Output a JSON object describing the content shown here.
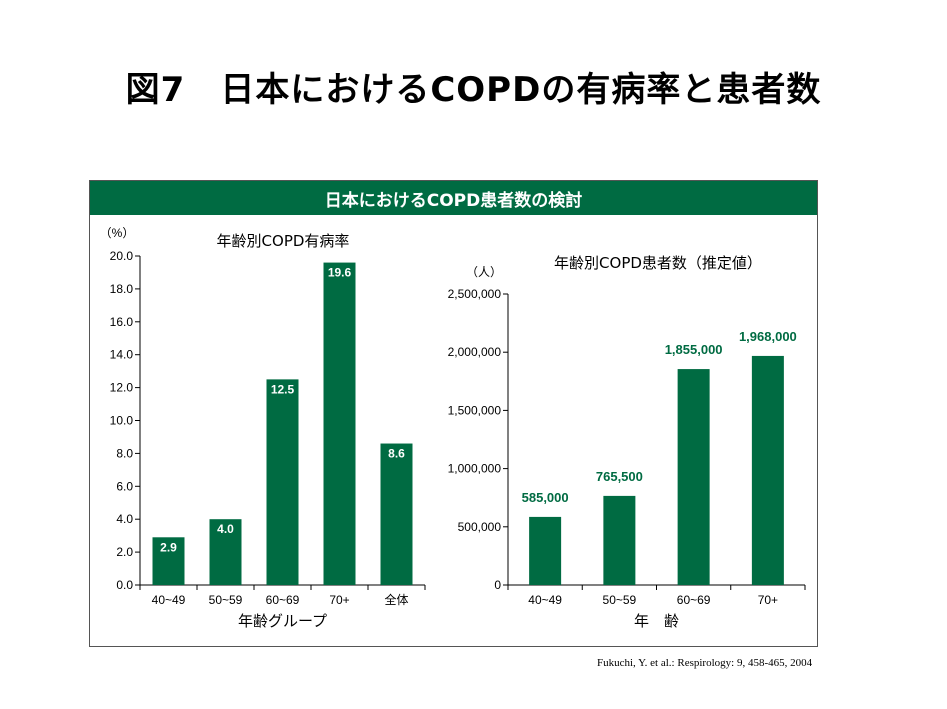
{
  "page": {
    "title": "図7　日本におけるCOPDの有病率と患者数",
    "citation": "Fukuchi, Y. et al.: Respirology: 9, 458-465, 2004"
  },
  "panel": {
    "header": "日本におけるCOPD患者数の検討"
  },
  "colors": {
    "bar": "#006b42",
    "header_bg": "#006b42"
  },
  "chart_data": [
    {
      "type": "bar",
      "title": "年齢別COPD有病率",
      "unit": "（%）",
      "xlabel": "年齢グループ",
      "categories": [
        "40~49",
        "50~59",
        "60~69",
        "70+",
        "全体"
      ],
      "values": [
        2.9,
        4.0,
        12.5,
        19.6,
        8.6
      ],
      "value_labels": [
        "2.9",
        "4.0",
        "12.5",
        "19.6",
        "8.6"
      ],
      "yticks": [
        "0.0",
        "2.0",
        "4.0",
        "6.0",
        "8.0",
        "10.0",
        "12.0",
        "14.0",
        "16.0",
        "18.0",
        "20.0"
      ],
      "ylim": [
        0,
        20
      ]
    },
    {
      "type": "bar",
      "title": "年齢別COPD患者数（推定値）",
      "unit": "（人）",
      "xlabel": "年　齢",
      "categories": [
        "40~49",
        "50~59",
        "60~69",
        "70+"
      ],
      "values": [
        585000,
        765500,
        1855000,
        1968000
      ],
      "value_labels": [
        "585,000",
        "765,500",
        "1,855,000",
        "1,968,000"
      ],
      "yticks": [
        "0",
        "500,000",
        "1,000,000",
        "1,500,000",
        "2,000,000",
        "2,500,000"
      ],
      "ylim": [
        0,
        2500000
      ]
    }
  ]
}
